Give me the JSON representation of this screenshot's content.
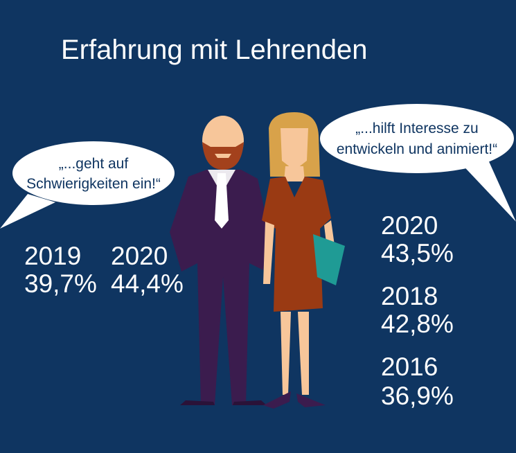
{
  "title": "Erfahrung mit Lehrenden",
  "left": {
    "quote": [
      "„...geht auf",
      "Schwierigkeiten ein!“"
    ],
    "stats": [
      {
        "year": "2019",
        "value": "39,7%"
      },
      {
        "year": "2020",
        "value": "44,4%"
      }
    ]
  },
  "right": {
    "quote": [
      "„...hilft Interesse zu",
      "entwickeln und animiert!“"
    ],
    "stats": [
      {
        "year": "2020",
        "value": "43,5%"
      },
      {
        "year": "2018",
        "value": "42,8%"
      },
      {
        "year": "2016",
        "value": "36,9%"
      }
    ]
  }
}
